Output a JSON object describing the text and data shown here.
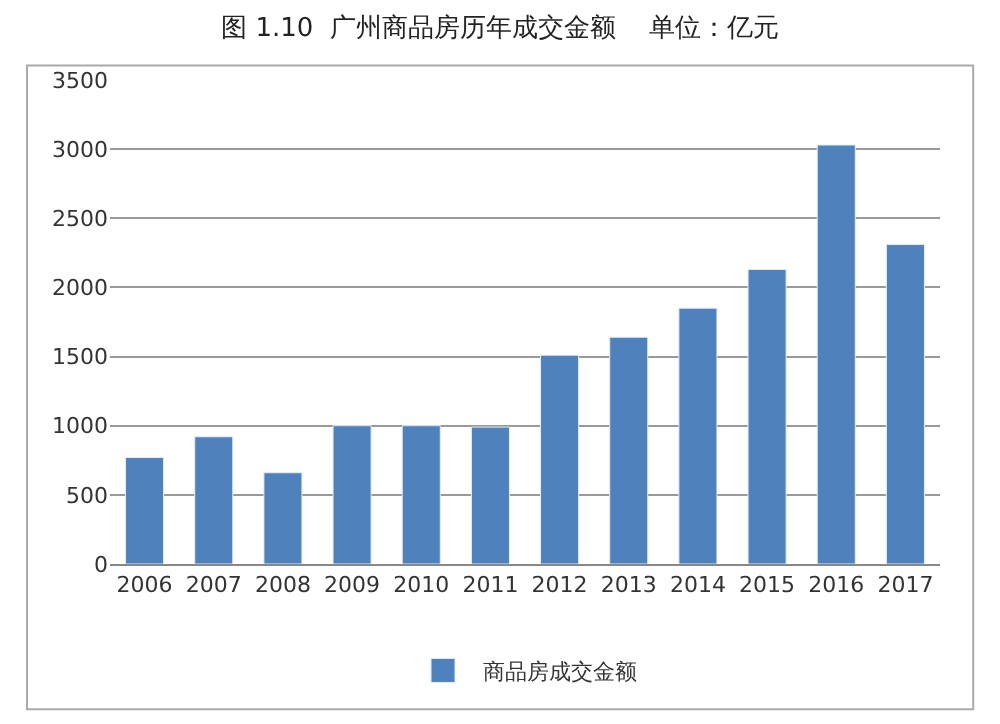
{
  "chart_data": {
    "type": "bar",
    "title": "图 1.10  广州商品房历年成交金额    单位：亿元",
    "categories": [
      "2006",
      "2007",
      "2008",
      "2009",
      "2010",
      "2011",
      "2012",
      "2013",
      "2014",
      "2015",
      "2016",
      "2017"
    ],
    "series": [
      {
        "name": "商品房成交金额",
        "color": "#4f81bd",
        "values": [
          770,
          920,
          660,
          1000,
          1000,
          990,
          1510,
          1640,
          1850,
          2130,
          3030,
          2310
        ]
      }
    ],
    "ylim": [
      0,
      3500
    ],
    "yticks": [
      0,
      500,
      1000,
      1500,
      2000,
      2500,
      3000,
      3500
    ],
    "grid": "y",
    "legend": "bottom"
  }
}
